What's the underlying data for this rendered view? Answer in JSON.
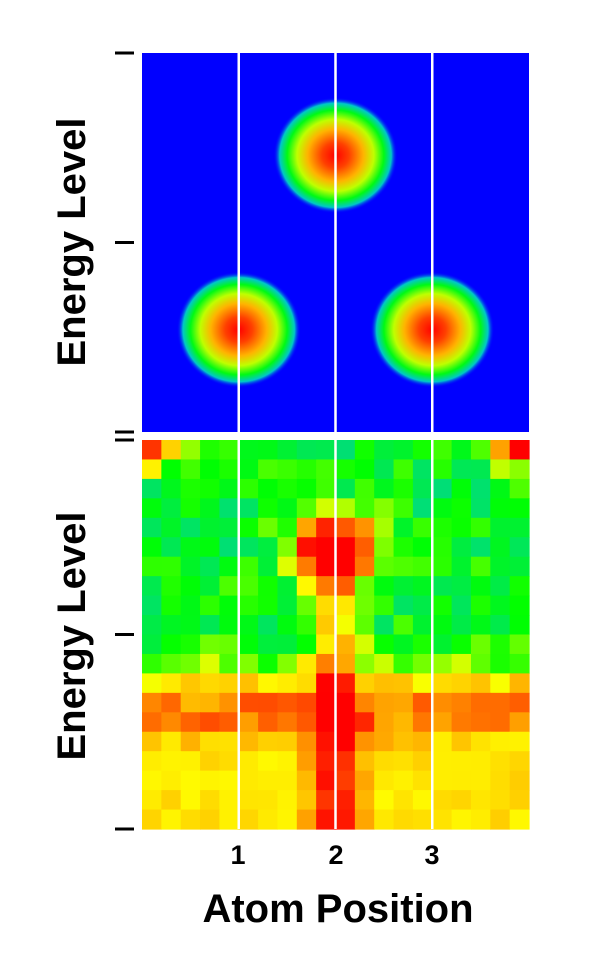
{
  "chart_data": [
    {
      "type": "heatmap",
      "panel": "top",
      "ylabel": "Energy Level",
      "xlabel": "",
      "colormap": [
        "#0000ff",
        "#00c8c8",
        "#00ff00",
        "#ffff00",
        "#ff8000",
        "#ff0000"
      ],
      "background_level": 0.0,
      "peaks": [
        {
          "atom": 2,
          "energy": 0.73,
          "intensity": 1.0
        },
        {
          "atom": 1,
          "energy": 0.27,
          "intensity": 1.0
        },
        {
          "atom": 3,
          "energy": 0.27,
          "intensity": 1.0
        }
      ],
      "ylim": [
        0,
        1
      ],
      "xlim": [
        0,
        4
      ],
      "y_ticks": [
        0,
        0.5,
        1
      ]
    },
    {
      "type": "heatmap",
      "panel": "bottom",
      "ylabel": "Energy Level",
      "xlabel": "Atom Position",
      "x_ticks": [
        1,
        2,
        3
      ],
      "x_tick_labels": [
        "1",
        "2",
        "3"
      ],
      "ylim": [
        0,
        1
      ],
      "xlim": [
        0,
        4
      ],
      "y_ticks": [
        0,
        0.5,
        1
      ],
      "grid": {
        "cols": 20,
        "rows": 20
      },
      "features": {
        "band_energy": 0.3,
        "localized_state": {
          "atom": 2,
          "energy": 0.73,
          "intensity": 1.0
        },
        "corner_hotspots_energy": 0.98
      }
    }
  ],
  "atom_markers": [
    1,
    2,
    3
  ],
  "labels": {
    "top_ylabel": "Energy Level",
    "bottom_ylabel": "Energy Level",
    "xlabel": "Atom Position",
    "tick_1": "1",
    "tick_2": "2",
    "tick_3": "3"
  }
}
